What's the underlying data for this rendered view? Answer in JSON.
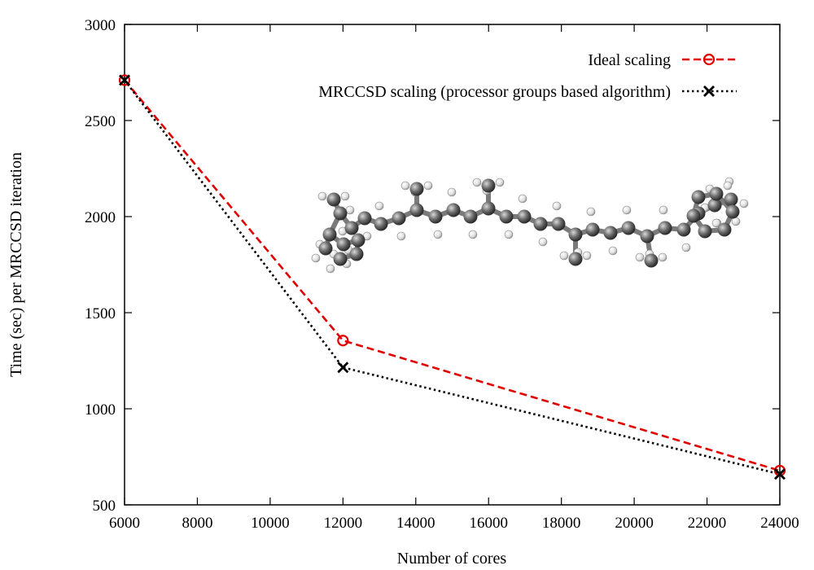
{
  "chart_data": {
    "type": "line",
    "title": "",
    "xlabel": "Number of cores",
    "ylabel": "Time (sec) per MRCCSD iteration",
    "xlim": [
      6000,
      24000
    ],
    "ylim": [
      500,
      3000
    ],
    "xticks": [
      "6000",
      "8000",
      "10000",
      "12000",
      "14000",
      "16000",
      "18000",
      "20000",
      "22000",
      "24000"
    ],
    "yticks": [
      "500",
      "1000",
      "1500",
      "2000",
      "2500",
      "3000"
    ],
    "grid": false,
    "legend_position": "top-right",
    "series": [
      {
        "name": "Ideal scaling",
        "color": "#e00000",
        "line_style": "dashed",
        "marker": "circle",
        "x": [
          6000,
          12000,
          24000
        ],
        "y": [
          2710,
          1355,
          678
        ]
      },
      {
        "name": "MRCCSD scaling (processor groups based algorithm)",
        "color": "#000000",
        "line_style": "dotted",
        "marker": "x",
        "x": [
          6000,
          12000,
          24000
        ],
        "y": [
          2710,
          1215,
          660
        ]
      }
    ],
    "inset_image": "molecule-ball-and-stick"
  }
}
